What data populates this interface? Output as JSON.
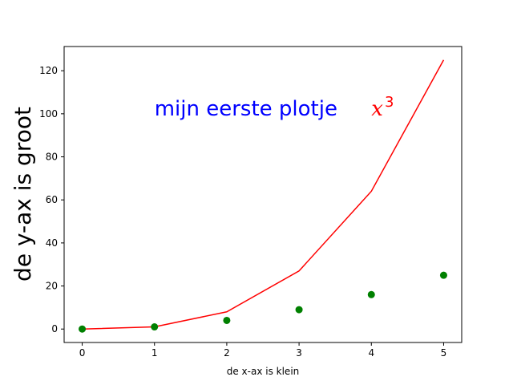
{
  "chart_data": {
    "type": "line",
    "x": [
      0,
      1,
      2,
      3,
      4,
      5
    ],
    "series": [
      {
        "kind": "line",
        "color": "#ff0000",
        "values": [
          0,
          1,
          8,
          27,
          64,
          125
        ]
      },
      {
        "kind": "scatter",
        "color": "#008000",
        "values": [
          0,
          1,
          4,
          9,
          16,
          25
        ]
      }
    ],
    "xlabel": "de x-ax is klein",
    "ylabel": "de y-ax is groot",
    "xlim": [
      -0.25,
      5.25
    ],
    "ylim": [
      -6.25,
      131.25
    ],
    "xticks": [
      0,
      1,
      2,
      3,
      4,
      5
    ],
    "yticks": [
      0,
      20,
      40,
      60,
      80,
      100,
      120
    ],
    "grid": false,
    "annotations": [
      {
        "text": "mijn eerste plotje",
        "color": "#0000ff",
        "x": 1,
        "y": 100
      },
      {
        "base": "x",
        "sup": "3",
        "color": "#ff0000",
        "x": 4,
        "y": 100
      }
    ]
  }
}
